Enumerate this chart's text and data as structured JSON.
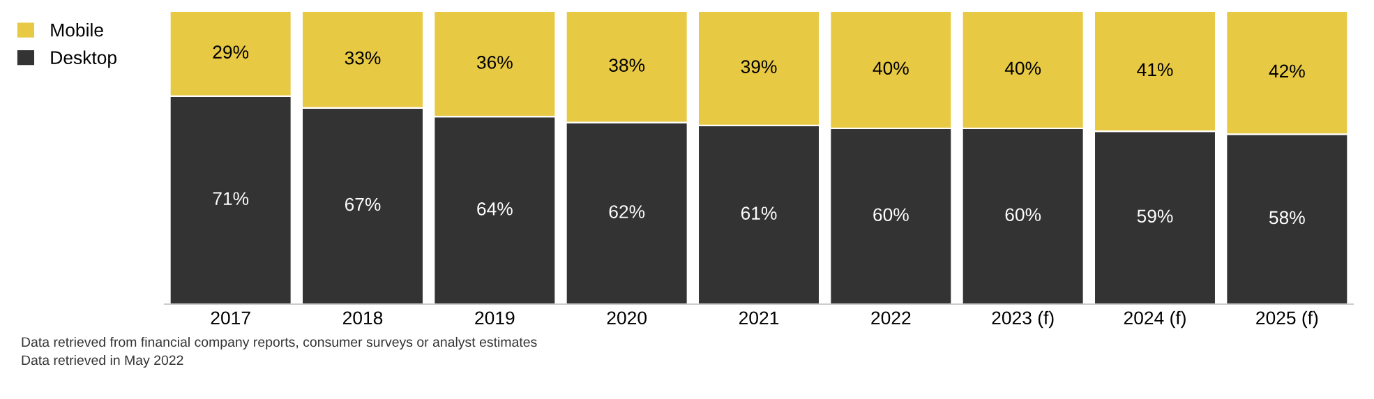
{
  "chart_data": {
    "type": "bar",
    "stacked": true,
    "legend": "top left",
    "grid": false,
    "tick_labels": "x",
    "categories": [
      "2017",
      "2018",
      "2019",
      "2020",
      "2021",
      "2022",
      "2023 (f)",
      "2024 (f)",
      "2025 (f)"
    ],
    "series": [
      {
        "name": "Desktop",
        "color": "#333333",
        "values": [
          71,
          67,
          64,
          62,
          61,
          60,
          60,
          59,
          58
        ],
        "value_labels": [
          "71%",
          "67%",
          "64%",
          "62%",
          "61%",
          "60%",
          "60%",
          "59%",
          "58%"
        ]
      },
      {
        "name": "Mobile",
        "color": "#e8c944",
        "values": [
          29,
          33,
          36,
          38,
          39,
          40,
          40,
          41,
          42
        ],
        "value_labels": [
          "29%",
          "33%",
          "36%",
          "38%",
          "39%",
          "40%",
          "40%",
          "41%",
          "42%"
        ]
      }
    ],
    "annotations": [
      "Data retrieved from financial company reports, consumer surveys or analyst estimates",
      "Data retrieved in May 2022"
    ]
  }
}
